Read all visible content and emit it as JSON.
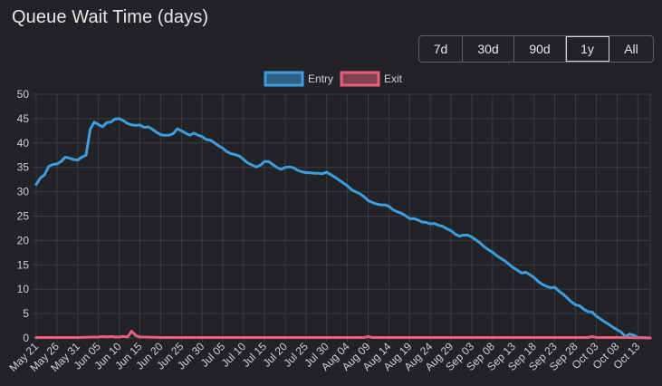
{
  "header": {
    "title": "Queue Wait Time (days)"
  },
  "range_buttons": [
    {
      "label": "7d",
      "active": false
    },
    {
      "label": "30d",
      "active": false
    },
    {
      "label": "90d",
      "active": false
    },
    {
      "label": "1y",
      "active": true
    },
    {
      "label": "All",
      "active": false
    }
  ],
  "colors": {
    "entry": "#3e9ddf",
    "exit": "#e85f7a",
    "grid": "#3a3c40",
    "text": "#d0d0d0"
  },
  "chart_data": {
    "type": "line",
    "title": "Queue Wait Time (days)",
    "legend_position": "top-center",
    "grid": true,
    "ylim": [
      0,
      50
    ],
    "yticks": [
      0,
      5,
      10,
      15,
      20,
      25,
      30,
      35,
      40,
      45,
      50
    ],
    "x_range": [
      "May 21",
      "Oct 16"
    ],
    "xtick_labels": [
      "May 21",
      "May 26",
      "May 31",
      "Jun 05",
      "Jun 10",
      "Jun 15",
      "Jun 20",
      "Jun 25",
      "Jun 30",
      "Jul 05",
      "Jul 10",
      "Jul 15",
      "Jul 20",
      "Jul 25",
      "Jul 30",
      "Aug 04",
      "Aug 09",
      "Aug 14",
      "Aug 19",
      "Aug 24",
      "Aug 29",
      "Sep 03",
      "Sep 08",
      "Sep 13",
      "Sep 18",
      "Sep 23",
      "Sep 28",
      "Oct 03",
      "Oct 08",
      "Oct 13"
    ],
    "series": [
      {
        "name": "Entry",
        "points": [
          [
            "May 21",
            31.5
          ],
          [
            "May 22",
            32.8
          ],
          [
            "May 23",
            33.5
          ],
          [
            "May 24",
            35.2
          ],
          [
            "May 25",
            35.6
          ],
          [
            "May 26",
            35.7
          ],
          [
            "May 27",
            36.2
          ],
          [
            "May 28",
            37.1
          ],
          [
            "May 29",
            36.9
          ],
          [
            "May 30",
            36.6
          ],
          [
            "May 31",
            36.5
          ],
          [
            "Jun 01",
            37.1
          ],
          [
            "Jun 02",
            37.5
          ],
          [
            "Jun 03",
            42.8
          ],
          [
            "Jun 04",
            44.3
          ],
          [
            "Jun 05",
            43.8
          ],
          [
            "Jun 06",
            43.3
          ],
          [
            "Jun 07",
            44.2
          ],
          [
            "Jun 08",
            44.3
          ],
          [
            "Jun 09",
            44.9
          ],
          [
            "Jun 10",
            45.0
          ],
          [
            "Jun 11",
            44.6
          ],
          [
            "Jun 12",
            44.0
          ],
          [
            "Jun 13",
            43.7
          ],
          [
            "Jun 14",
            43.6
          ],
          [
            "Jun 15",
            43.7
          ],
          [
            "Jun 16",
            43.2
          ],
          [
            "Jun 17",
            43.3
          ],
          [
            "Jun 18",
            42.8
          ],
          [
            "Jun 19",
            42.2
          ],
          [
            "Jun 20",
            41.7
          ],
          [
            "Jun 21",
            41.6
          ],
          [
            "Jun 22",
            41.6
          ],
          [
            "Jun 23",
            41.9
          ],
          [
            "Jun 24",
            42.9
          ],
          [
            "Jun 25",
            42.5
          ],
          [
            "Jun 26",
            42.0
          ],
          [
            "Jun 27",
            41.6
          ],
          [
            "Jun 28",
            42.0
          ],
          [
            "Jun 29",
            41.6
          ],
          [
            "Jun 30",
            41.3
          ],
          [
            "Jul 01",
            40.7
          ],
          [
            "Jul 02",
            40.6
          ],
          [
            "Jul 03",
            40.0
          ],
          [
            "Jul 04",
            39.4
          ],
          [
            "Jul 05",
            38.9
          ],
          [
            "Jul 06",
            38.2
          ],
          [
            "Jul 07",
            37.8
          ],
          [
            "Jul 08",
            37.6
          ],
          [
            "Jul 09",
            37.3
          ],
          [
            "Jul 10",
            36.6
          ],
          [
            "Jul 11",
            35.9
          ],
          [
            "Jul 12",
            35.5
          ],
          [
            "Jul 13",
            35.1
          ],
          [
            "Jul 14",
            35.4
          ],
          [
            "Jul 15",
            36.2
          ],
          [
            "Jul 16",
            36.2
          ],
          [
            "Jul 17",
            35.6
          ],
          [
            "Jul 18",
            35.0
          ],
          [
            "Jul 19",
            34.6
          ],
          [
            "Jul 20",
            35.0
          ],
          [
            "Jul 21",
            35.1
          ],
          [
            "Jul 22",
            34.9
          ],
          [
            "Jul 23",
            34.4
          ],
          [
            "Jul 24",
            34.1
          ],
          [
            "Jul 25",
            33.9
          ],
          [
            "Jul 26",
            33.9
          ],
          [
            "Jul 27",
            33.8
          ],
          [
            "Jul 28",
            33.8
          ],
          [
            "Jul 29",
            33.7
          ],
          [
            "Jul 30",
            34.0
          ],
          [
            "Jul 31",
            33.5
          ],
          [
            "Aug 01",
            33.0
          ],
          [
            "Aug 02",
            32.4
          ],
          [
            "Aug 03",
            31.8
          ],
          [
            "Aug 04",
            31.2
          ],
          [
            "Aug 05",
            30.4
          ],
          [
            "Aug 06",
            30.0
          ],
          [
            "Aug 07",
            29.6
          ],
          [
            "Aug 08",
            29.0
          ],
          [
            "Aug 09",
            28.2
          ],
          [
            "Aug 10",
            27.8
          ],
          [
            "Aug 11",
            27.5
          ],
          [
            "Aug 12",
            27.3
          ],
          [
            "Aug 13",
            27.3
          ],
          [
            "Aug 14",
            27.0
          ],
          [
            "Aug 15",
            26.3
          ],
          [
            "Aug 16",
            25.9
          ],
          [
            "Aug 17",
            25.6
          ],
          [
            "Aug 18",
            25.1
          ],
          [
            "Aug 19",
            24.5
          ],
          [
            "Aug 20",
            24.5
          ],
          [
            "Aug 21",
            24.2
          ],
          [
            "Aug 22",
            23.8
          ],
          [
            "Aug 23",
            23.7
          ],
          [
            "Aug 24",
            23.4
          ],
          [
            "Aug 25",
            23.5
          ],
          [
            "Aug 26",
            23.1
          ],
          [
            "Aug 27",
            22.9
          ],
          [
            "Aug 28",
            22.4
          ],
          [
            "Aug 29",
            22.0
          ],
          [
            "Aug 30",
            21.3
          ],
          [
            "Aug 31",
            20.9
          ],
          [
            "Sep 01",
            21.1
          ],
          [
            "Sep 02",
            21.1
          ],
          [
            "Sep 03",
            20.7
          ],
          [
            "Sep 04",
            20.1
          ],
          [
            "Sep 05",
            19.5
          ],
          [
            "Sep 06",
            18.7
          ],
          [
            "Sep 07",
            18.1
          ],
          [
            "Sep 08",
            17.6
          ],
          [
            "Sep 09",
            16.9
          ],
          [
            "Sep 10",
            16.3
          ],
          [
            "Sep 11",
            15.8
          ],
          [
            "Sep 12",
            15.1
          ],
          [
            "Sep 13",
            14.4
          ],
          [
            "Sep 14",
            13.9
          ],
          [
            "Sep 15",
            13.3
          ],
          [
            "Sep 16",
            13.5
          ],
          [
            "Sep 17",
            13.0
          ],
          [
            "Sep 18",
            12.4
          ],
          [
            "Sep 19",
            11.6
          ],
          [
            "Sep 20",
            11.0
          ],
          [
            "Sep 21",
            10.6
          ],
          [
            "Sep 22",
            10.3
          ],
          [
            "Sep 23",
            10.4
          ],
          [
            "Sep 24",
            9.6
          ],
          [
            "Sep 25",
            9.0
          ],
          [
            "Sep 26",
            8.2
          ],
          [
            "Sep 27",
            7.4
          ],
          [
            "Sep 28",
            6.8
          ],
          [
            "Sep 29",
            6.6
          ],
          [
            "Sep 30",
            5.9
          ],
          [
            "Oct 01",
            5.4
          ],
          [
            "Oct 02",
            5.3
          ],
          [
            "Oct 03",
            4.5
          ],
          [
            "Oct 04",
            3.9
          ],
          [
            "Oct 05",
            3.3
          ],
          [
            "Oct 06",
            2.8
          ],
          [
            "Oct 07",
            2.2
          ],
          [
            "Oct 08",
            1.7
          ],
          [
            "Oct 09",
            1.2
          ],
          [
            "Oct 10",
            0.3
          ],
          [
            "Oct 11",
            0.8
          ],
          [
            "Oct 12",
            0.6
          ],
          [
            "Oct 13",
            0.1
          ],
          [
            "Oct 14",
            0.1
          ],
          [
            "Oct 15",
            0.05
          ],
          [
            "Oct 16",
            0.0
          ]
        ]
      },
      {
        "name": "Exit",
        "points": [
          [
            "May 21",
            0.1
          ],
          [
            "May 25",
            0.1
          ],
          [
            "May 31",
            0.1
          ],
          [
            "Jun 05",
            0.2
          ],
          [
            "Jun 06",
            0.3
          ],
          [
            "Jun 07",
            0.2
          ],
          [
            "Jun 08",
            0.3
          ],
          [
            "Jun 09",
            0.2
          ],
          [
            "Jun 10",
            0.2
          ],
          [
            "Jun 11",
            0.3
          ],
          [
            "Jun 12",
            0.2
          ],
          [
            "Jun 13",
            1.4
          ],
          [
            "Jun 14",
            0.5
          ],
          [
            "Jun 15",
            0.2
          ],
          [
            "Jun 20",
            0.1
          ],
          [
            "Jul 10",
            0.1
          ],
          [
            "Aug 08",
            0.1
          ],
          [
            "Aug 09",
            0.3
          ],
          [
            "Aug 10",
            0.1
          ],
          [
            "Sep 20",
            0.1
          ],
          [
            "Oct 01",
            0.1
          ],
          [
            "Oct 02",
            0.3
          ],
          [
            "Oct 03",
            0.1
          ],
          [
            "Oct 10",
            0.1
          ],
          [
            "Oct 16",
            0.0
          ]
        ]
      }
    ]
  }
}
